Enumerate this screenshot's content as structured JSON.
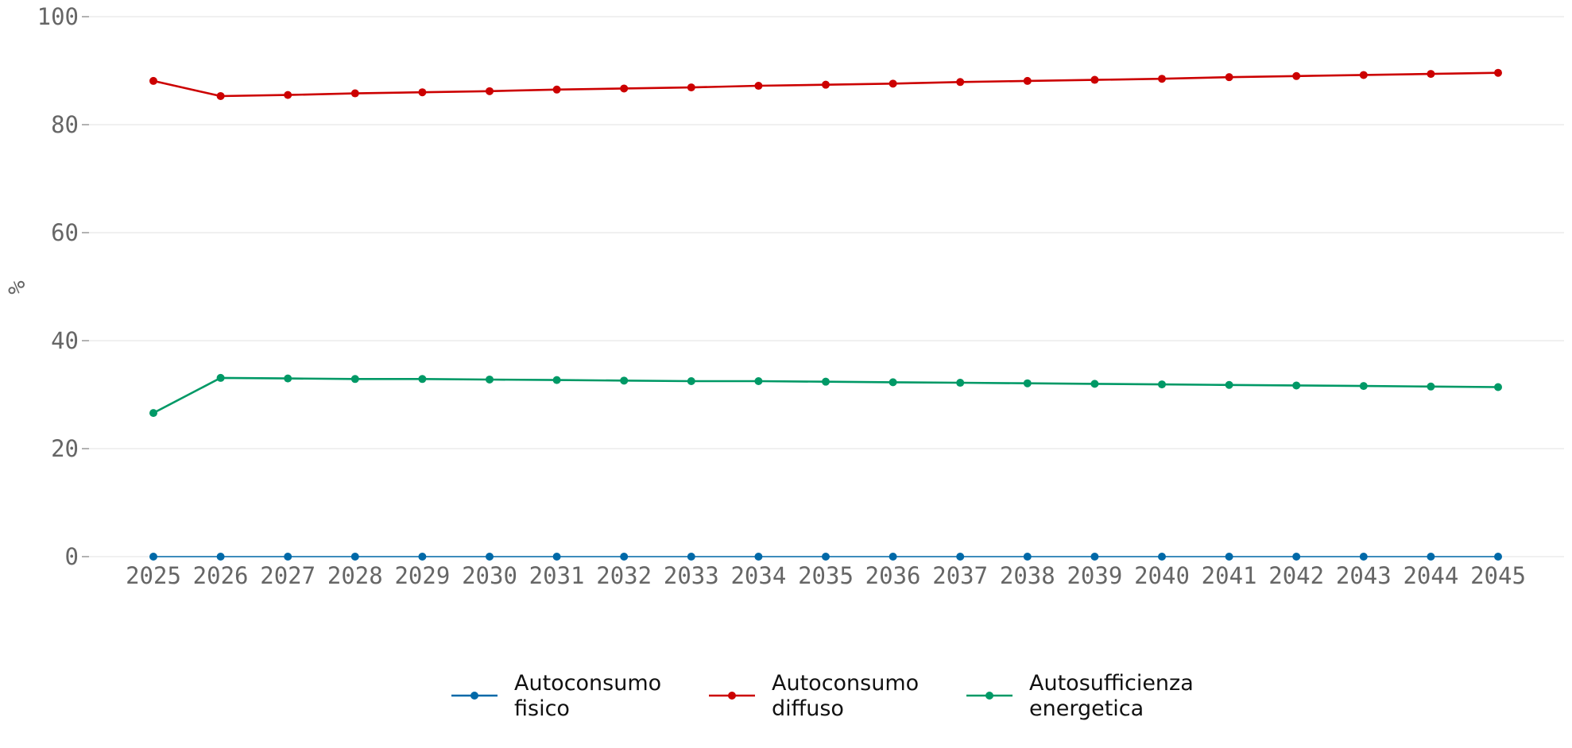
{
  "chart_data": {
    "type": "line",
    "title": "",
    "xlabel": "",
    "ylabel": "%",
    "ylim": [
      0,
      100
    ],
    "yticks": [
      0,
      20,
      40,
      60,
      80,
      100
    ],
    "grid": "horizontal",
    "legend_position": "bottom-center",
    "x": [
      "2025",
      "2026",
      "2027",
      "2028",
      "2029",
      "2030",
      "2031",
      "2032",
      "2033",
      "2034",
      "2035",
      "2036",
      "2037",
      "2038",
      "2039",
      "2040",
      "2041",
      "2042",
      "2043",
      "2044",
      "2045"
    ],
    "series": [
      {
        "name": "Autoconsumo fisico",
        "legend_lines": [
          "Autoconsumo",
          "fisico"
        ],
        "color": "#0069a8",
        "values": [
          0,
          0,
          0,
          0,
          0,
          0,
          0,
          0,
          0,
          0,
          0,
          0,
          0,
          0,
          0,
          0,
          0,
          0,
          0,
          0,
          0
        ]
      },
      {
        "name": "Autoconsumo diffuso",
        "legend_lines": [
          "Autoconsumo",
          "diffuso"
        ],
        "color": "#cc0000",
        "values": [
          88.1,
          85.3,
          85.5,
          85.8,
          86.0,
          86.2,
          86.5,
          86.7,
          86.9,
          87.2,
          87.4,
          87.6,
          87.9,
          88.1,
          88.3,
          88.5,
          88.8,
          89.0,
          89.2,
          89.4,
          89.6
        ]
      },
      {
        "name": "Autosufficienza energetica",
        "legend_lines": [
          "Autosufficienza",
          "energetica"
        ],
        "color": "#009966",
        "values": [
          26.6,
          33.1,
          33.0,
          32.9,
          32.9,
          32.8,
          32.7,
          32.6,
          32.5,
          32.5,
          32.4,
          32.3,
          32.2,
          32.1,
          32.0,
          31.9,
          31.8,
          31.7,
          31.6,
          31.5,
          31.4
        ]
      }
    ]
  }
}
